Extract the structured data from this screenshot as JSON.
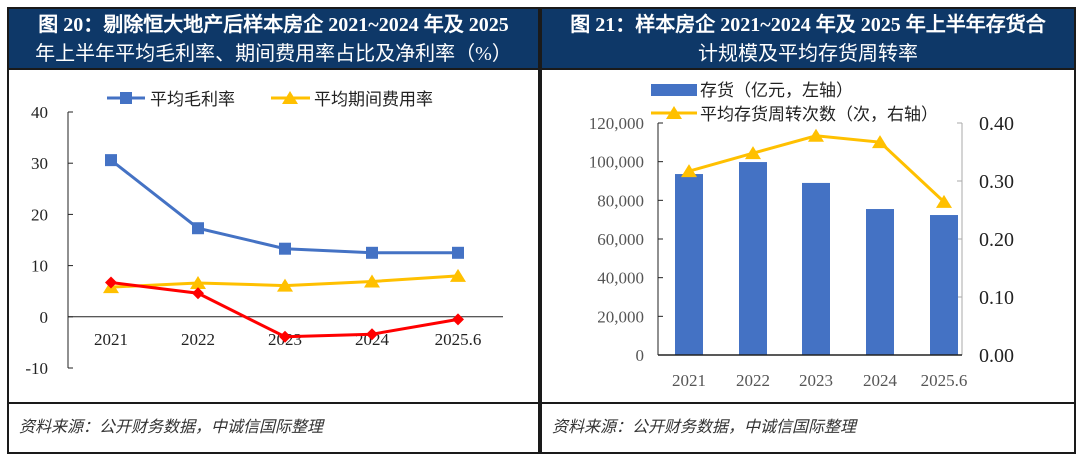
{
  "colors": {
    "header_bg": "#0e3868",
    "gross_margin": "#4472c4",
    "expense_ratio": "#ffc000",
    "net_margin": "#ff0000",
    "inventory_bar": "#4472c4",
    "turnover_line": "#ffc000"
  },
  "left_panel": {
    "title_line1": "图 20：剔除恒大地产后样本房企 2021~2024 年及 2025",
    "title_line2": "年上半年平均毛利率、期间费用率占比及净利率（%）",
    "source": "资料来源：公开财务数据，中诚信国际整理"
  },
  "right_panel": {
    "title_line1": "图 21：样本房企 2021~2024 年及 2025 年上半年存货合",
    "title_line2": "计规模及平均存货周转率",
    "source": "资料来源：公开财务数据，中诚信国际整理"
  },
  "chart_data": [
    {
      "type": "line",
      "title": "剔除恒大地产后样本房企 2021~2024 年及 2025 年上半年平均毛利率、期间费用率占比及净利率（%）",
      "categories": [
        "2021",
        "2022",
        "2023",
        "2024",
        "2025.6"
      ],
      "ylim": [
        -10,
        40
      ],
      "yticks": [
        "40",
        "30",
        "20",
        "10",
        "0",
        "-10"
      ],
      "ytick_values": [
        40,
        30,
        20,
        10,
        0,
        -10
      ],
      "legend_position": "top",
      "series": [
        {
          "name": "平均毛利率",
          "marker": "square",
          "values": [
            30.6,
            17.3,
            13.3,
            12.5,
            12.5
          ]
        },
        {
          "name": "平均期间费用率",
          "marker": "triangle",
          "values": [
            5.8,
            6.6,
            6.1,
            6.9,
            8.0
          ]
        },
        {
          "name": "",
          "marker": "diamond",
          "values": [
            6.7,
            4.6,
            -3.9,
            -3.4,
            -0.5
          ]
        }
      ]
    },
    {
      "type": "bar",
      "title": "样本房企 2021~2024 年及 2025 年上半年存货合计规模及平均存货周转率",
      "categories": [
        "2021",
        "2022",
        "2023",
        "2024",
        "2025.6"
      ],
      "ylim": [
        0,
        120000
      ],
      "yticks": [
        "120,000",
        "100,000",
        "80,000",
        "60,000",
        "40,000",
        "20,000",
        "0"
      ],
      "ytick_values": [
        120000,
        100000,
        80000,
        60000,
        40000,
        20000,
        0
      ],
      "y2lim": [
        0,
        0.4
      ],
      "y2ticks": [
        "0.40",
        "0.30",
        "0.20",
        "0.10",
        "0.00"
      ],
      "y2tick_values": [
        0.4,
        0.3,
        0.2,
        0.1,
        0.0
      ],
      "legend_position": "top",
      "series": [
        {
          "name": "存货（亿元，左轴）",
          "type": "bar",
          "axis": "left",
          "values": [
            93600,
            99800,
            89000,
            75500,
            72400
          ]
        },
        {
          "name": "平均存货周转次数（次，右轴）",
          "type": "line",
          "axis": "right",
          "marker": "triangle",
          "values": [
            0.317,
            0.348,
            0.378,
            0.367,
            0.264
          ]
        }
      ]
    }
  ]
}
